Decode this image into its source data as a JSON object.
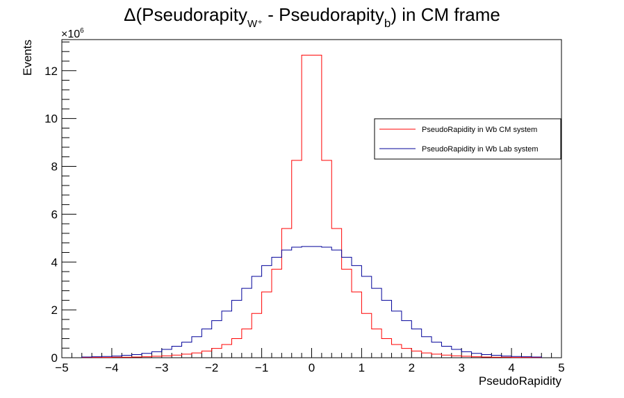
{
  "chart_data": {
    "type": "line",
    "title_main": "Δ(Pseudorapity",
    "title_sub1": "W⁺",
    "title_mid": " - Pseudorapity",
    "title_sub2": "b",
    "title_end": ") in CM frame",
    "xlabel": "PseudoRapidity",
    "ylabel": "Events",
    "y_multiplier": "×10",
    "y_multiplier_exp": "6",
    "xlim": [
      -5,
      5
    ],
    "ylim": [
      0,
      13.3
    ],
    "x_ticks": [
      -5,
      -4,
      -3,
      -2,
      -1,
      0,
      1,
      2,
      3,
      4,
      5
    ],
    "x_tick_labels": [
      "−5",
      "−4",
      "−3",
      "−2",
      "−1",
      "0",
      "1",
      "2",
      "3",
      "4",
      "5"
    ],
    "y_ticks": [
      0,
      2,
      4,
      6,
      8,
      10,
      12
    ],
    "y_tick_labels": [
      "0",
      "2",
      "4",
      "6",
      "8",
      "10",
      "12"
    ],
    "legend_position": "right",
    "bin_edges": [
      -4.6,
      -4.4,
      -4.2,
      -4.0,
      -3.8,
      -3.6,
      -3.4,
      -3.2,
      -3.0,
      -2.8,
      -2.6,
      -2.4,
      -2.2,
      -2.0,
      -1.8,
      -1.6,
      -1.4,
      -1.2,
      -1.0,
      -0.8,
      -0.6,
      -0.4,
      -0.2,
      0.0,
      0.2,
      0.4,
      0.6,
      0.8,
      1.0,
      1.2,
      1.4,
      1.6,
      1.8,
      2.0,
      2.2,
      2.4,
      2.6,
      2.8,
      3.0,
      3.2,
      3.4,
      3.6,
      3.8,
      4.0,
      4.2,
      4.4,
      4.6
    ],
    "series": [
      {
        "name": "PseudoRapidity in Wb CM system",
        "color": "#ff0000",
        "values": [
          0.01,
          0.01,
          0.01,
          0.02,
          0.02,
          0.03,
          0.04,
          0.06,
          0.08,
          0.11,
          0.15,
          0.2,
          0.28,
          0.39,
          0.55,
          0.8,
          1.2,
          1.85,
          2.75,
          3.7,
          5.4,
          8.25,
          12.65,
          12.65,
          8.25,
          5.4,
          3.7,
          2.75,
          1.85,
          1.2,
          0.8,
          0.55,
          0.39,
          0.28,
          0.2,
          0.15,
          0.11,
          0.08,
          0.06,
          0.04,
          0.03,
          0.02,
          0.02,
          0.01,
          0.01,
          0.01
        ]
      },
      {
        "name": "PseudoRapidity in Wb Lab system",
        "color": "#000099",
        "values": [
          0.03,
          0.04,
          0.05,
          0.07,
          0.1,
          0.13,
          0.18,
          0.25,
          0.35,
          0.48,
          0.65,
          0.88,
          1.2,
          1.55,
          1.95,
          2.4,
          2.9,
          3.4,
          3.85,
          4.2,
          4.5,
          4.62,
          4.65,
          4.65,
          4.62,
          4.5,
          4.2,
          3.85,
          3.4,
          2.9,
          2.4,
          1.95,
          1.55,
          1.2,
          0.88,
          0.65,
          0.48,
          0.35,
          0.25,
          0.18,
          0.13,
          0.1,
          0.07,
          0.05,
          0.04,
          0.03
        ]
      }
    ]
  }
}
